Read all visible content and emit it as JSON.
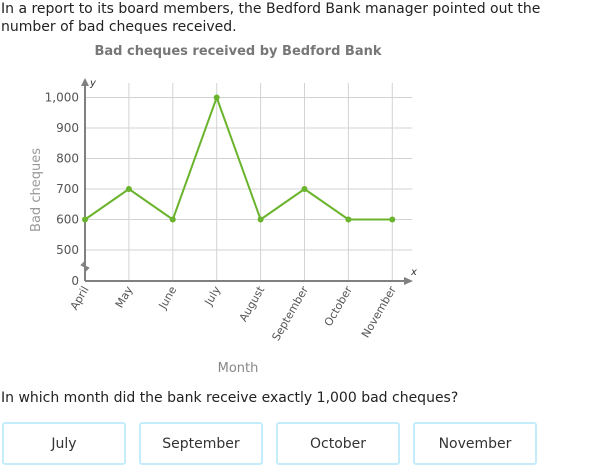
{
  "intro_text": "In a report to its board members, the Bedford Bank manager pointed out the number of bad cheques received.",
  "question": "In which month did the bank receive exactly 1,000 bad cheques?",
  "answers": [
    "July",
    "September",
    "October",
    "November"
  ],
  "colors": {
    "line": "#6ab42d",
    "grid": "#d3d3d3",
    "axis": "#808080",
    "button_border": "#c5ecfb"
  },
  "chart_data": {
    "type": "line",
    "title": "Bad cheques received by Bedford Bank",
    "xlabel": "Month",
    "ylabel": "Bad cheques",
    "x_axis_symbol": "x",
    "y_axis_symbol": "y",
    "categories": [
      "April",
      "May",
      "June",
      "July",
      "August",
      "September",
      "October",
      "November"
    ],
    "values": [
      600,
      700,
      600,
      1000,
      600,
      700,
      600,
      600
    ],
    "y_ticks": [
      "0",
      "500",
      "600",
      "700",
      "800",
      "900",
      "1,000"
    ],
    "ylim": [
      0,
      1000
    ],
    "axis_break": true,
    "grid": true
  }
}
